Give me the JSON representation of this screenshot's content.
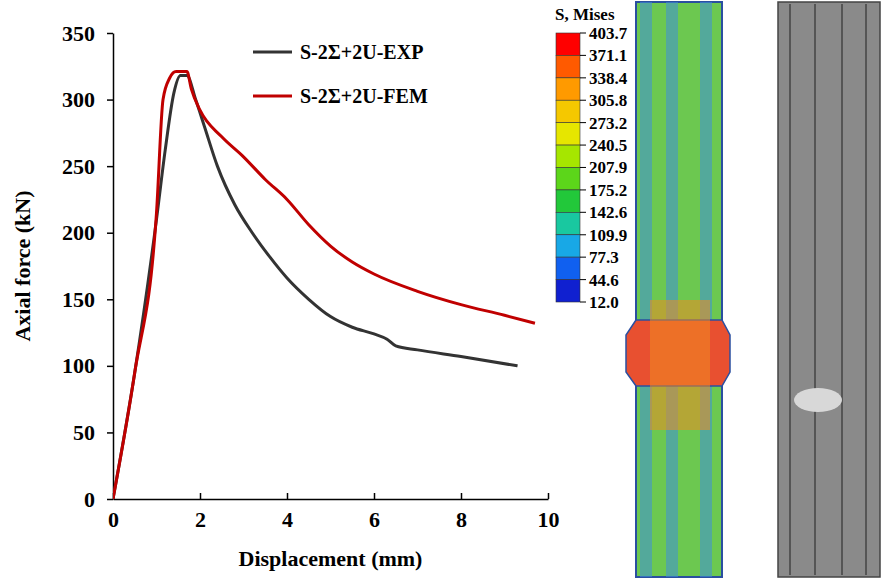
{
  "chart_data": {
    "type": "line",
    "x_label": "Displacement (mm)",
    "y_label": "Axial force (kN)",
    "xlim": [
      0,
      10
    ],
    "xticks": [
      0,
      2,
      4,
      6,
      8,
      10
    ],
    "ylim": [
      0,
      350
    ],
    "yticks": [
      0,
      50,
      100,
      150,
      200,
      250,
      300,
      350
    ],
    "grid": false,
    "legend": "upper right",
    "series": [
      {
        "name": "S-2Σ+2U-EXP",
        "color": "#333333",
        "line_style": "solid",
        "x": [
          0,
          0.5,
          1.0,
          1.2,
          1.4,
          1.55,
          1.7,
          1.9,
          2.1,
          2.4,
          2.8,
          3.2,
          3.6,
          4.0,
          4.5,
          5.0,
          5.5,
          6.0,
          6.3,
          6.5,
          7.0,
          8.0,
          9.3
        ],
        "values": [
          0,
          95,
          210,
          262,
          305,
          318,
          318,
          300,
          280,
          250,
          221,
          200,
          182,
          166,
          150,
          137,
          129,
          124,
          120,
          115,
          112,
          107,
          100
        ]
      },
      {
        "name": "S-2Σ+2U-FEM",
        "color": "#c00000",
        "line_style": "solid",
        "x": [
          0,
          0.5,
          1.0,
          1.15,
          1.3,
          1.45,
          1.7,
          1.8,
          2.0,
          2.5,
          3.0,
          3.5,
          4.0,
          4.5,
          5.0,
          5.5,
          6.0,
          7.0,
          8.0,
          9.0,
          9.7
        ],
        "values": [
          0,
          95,
          215,
          300,
          316,
          321,
          321,
          308,
          292,
          272,
          257,
          240,
          225,
          206,
          190,
          178,
          169,
          156,
          146,
          138,
          132
        ]
      }
    ],
    "colorbar": {
      "title": "S, Mises",
      "range": [
        12.0,
        403.7
      ],
      "ticks": [
        403.7,
        371.1,
        338.4,
        305.8,
        273.2,
        240.5,
        207.9,
        175.2,
        142.6,
        109.9,
        77.3,
        44.6,
        {
          "value": 12.0,
          "label": "12.0"
        }
      ]
    }
  }
}
